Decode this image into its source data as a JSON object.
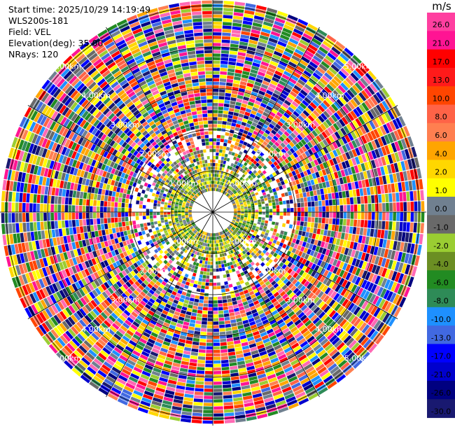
{
  "header": {
    "start_time": "Start time: 2025/10/29 14:19:49",
    "instrument": "WLS200s-181",
    "field": "Field: VEL",
    "elevation": "Elevation(deg): 35.00",
    "nrays": "NRays: 120"
  },
  "colorbar": {
    "unit": "m/s",
    "ticks": [
      "26.0",
      "21.0",
      "17.0",
      "13.0",
      "10.0",
      "8.0",
      "6.0",
      "4.0",
      "2.0",
      "1.0",
      "0.0",
      "-1.0",
      "-2.0",
      "-4.0",
      "-6.0",
      "-8.0",
      "-10.0",
      "-13.0",
      "-17.0",
      "-21.0",
      "-26.0",
      "-30.0"
    ],
    "colors": [
      "#ff3fa0",
      "#ff1493",
      "#ff0000",
      "#ff1a1a",
      "#ff4500",
      "#ff6347",
      "#ff7f50",
      "#ffa500",
      "#ffd700",
      "#ffff00",
      "#708090",
      "#696969",
      "#9acd32",
      "#6b8e23",
      "#228b22",
      "#2e8b57",
      "#1e90ff",
      "#4169e1",
      "#0000ff",
      "#0000cd",
      "#000080",
      "#191970"
    ]
  },
  "rings": {
    "labels": [
      "1.00km",
      "2.00km",
      "3.00km",
      "4.00km",
      "5.00km"
    ]
  },
  "scan": {
    "nrays": 120,
    "noise_palette": [
      "#ff1493",
      "#ff0000",
      "#ff4500",
      "#ff6347",
      "#ffa500",
      "#ffd700",
      "#ffff00",
      "#9acd32",
      "#228b22",
      "#2e8b57",
      "#1e90ff",
      "#4169e1",
      "#0000ff",
      "#0000cd",
      "#000080",
      "#191970",
      "#696969",
      "#708090",
      "#ff69b4",
      "#ff7f50"
    ],
    "near_palette": [
      "#ffd700",
      "#ffff00",
      "#ffa500",
      "#9acd32",
      "#6b8e23",
      "#228b22",
      "#2e8b57",
      "#708090",
      "#696969"
    ]
  }
}
